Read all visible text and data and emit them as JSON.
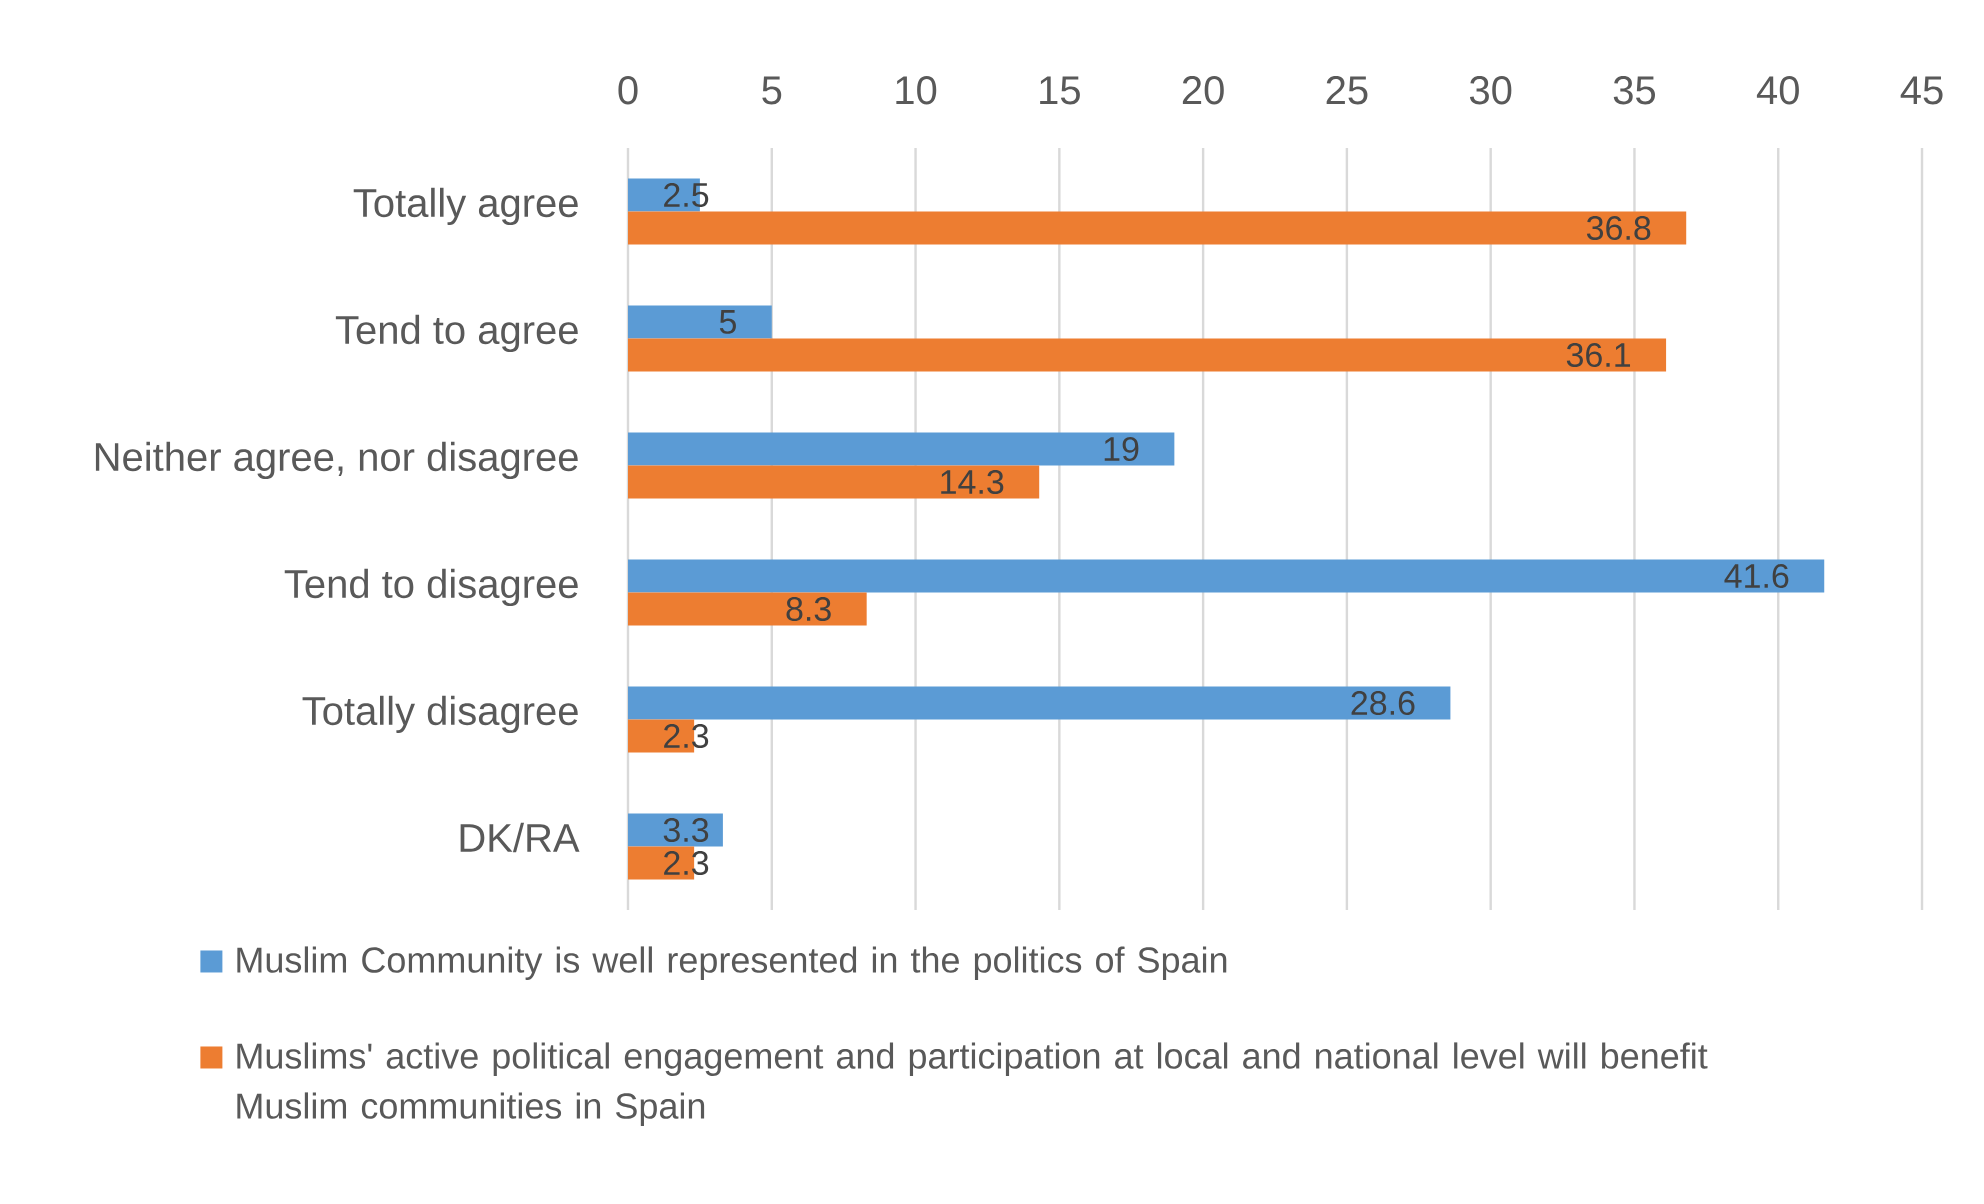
{
  "chart_data": {
    "type": "bar",
    "orientation": "horizontal",
    "categories": [
      "Totally agree",
      "Tend to agree",
      "Neither agree, nor disagree",
      "Tend to disagree",
      "Totally disagree",
      "DK/RA"
    ],
    "series": [
      {
        "name": "Muslim Community is well represented in the politics of Spain",
        "color": "#5b9bd5",
        "values": [
          2.5,
          5,
          19,
          41.6,
          28.6,
          3.3
        ]
      },
      {
        "name": "Muslims' active political engagement and participation at local and national level will benefit Muslim communities in Spain",
        "color": "#ed7d31",
        "values": [
          36.8,
          36.1,
          14.3,
          8.3,
          2.3,
          2.3
        ]
      }
    ],
    "xlim": [
      0,
      45
    ],
    "xticks": [
      0,
      5,
      10,
      15,
      20,
      25,
      30,
      35,
      40,
      45
    ],
    "grid": "x",
    "legend": "bottom",
    "data_labels": true
  }
}
